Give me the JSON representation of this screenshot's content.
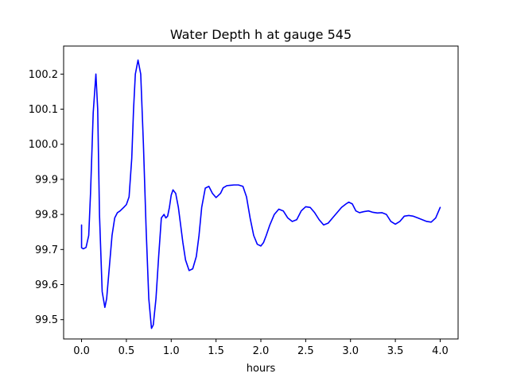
{
  "chart_data": {
    "type": "line",
    "title": "Water Depth h at gauge 545",
    "xlabel": "hours",
    "ylabel": "",
    "xlim": [
      -0.2,
      4.2
    ],
    "ylim": [
      99.445,
      100.28
    ],
    "xticks": [
      0.0,
      0.5,
      1.0,
      1.5,
      2.0,
      2.5,
      3.0,
      3.5,
      4.0
    ],
    "xtick_labels": [
      "0.0",
      "0.5",
      "1.0",
      "1.5",
      "2.0",
      "2.5",
      "3.0",
      "3.5",
      "4.0"
    ],
    "yticks": [
      99.5,
      99.6,
      99.7,
      99.8,
      99.9,
      100.0,
      100.1,
      100.2
    ],
    "ytick_labels": [
      "99.5",
      "99.6",
      "99.7",
      "99.8",
      "99.9",
      "100.0",
      "100.1",
      "100.2"
    ],
    "grid": false,
    "legend": "none",
    "series": [
      {
        "color": "#0000ff",
        "x": [
          0.0,
          0.0,
          0.02,
          0.05,
          0.08,
          0.1,
          0.13,
          0.16,
          0.18,
          0.2,
          0.23,
          0.26,
          0.28,
          0.31,
          0.34,
          0.37,
          0.4,
          0.43,
          0.47,
          0.5,
          0.53,
          0.56,
          0.58,
          0.6,
          0.63,
          0.66,
          0.69,
          0.72,
          0.75,
          0.78,
          0.8,
          0.83,
          0.86,
          0.89,
          0.92,
          0.94,
          0.96,
          0.98,
          1.0,
          1.02,
          1.05,
          1.08,
          1.1,
          1.13,
          1.16,
          1.2,
          1.24,
          1.28,
          1.31,
          1.34,
          1.38,
          1.42,
          1.46,
          1.5,
          1.55,
          1.58,
          1.62,
          1.66,
          1.7,
          1.75,
          1.8,
          1.84,
          1.88,
          1.92,
          1.96,
          2.0,
          2.03,
          2.06,
          2.1,
          2.15,
          2.2,
          2.25,
          2.3,
          2.35,
          2.4,
          2.45,
          2.5,
          2.55,
          2.6,
          2.65,
          2.7,
          2.75,
          2.8,
          2.85,
          2.9,
          2.95,
          2.98,
          3.02,
          3.06,
          3.1,
          3.15,
          3.2,
          3.25,
          3.3,
          3.35,
          3.4,
          3.45,
          3.5,
          3.55,
          3.6,
          3.65,
          3.7,
          3.75,
          3.8,
          3.85,
          3.9,
          3.95,
          4.0
        ],
        "values": [
          99.77,
          99.705,
          99.702,
          99.706,
          99.74,
          99.86,
          100.09,
          100.2,
          100.1,
          99.8,
          99.58,
          99.535,
          99.56,
          99.65,
          99.74,
          99.79,
          99.805,
          99.81,
          99.82,
          99.828,
          99.85,
          99.96,
          100.1,
          100.2,
          100.24,
          100.2,
          100.0,
          99.76,
          99.56,
          99.475,
          99.485,
          99.56,
          99.68,
          99.79,
          99.8,
          99.79,
          99.795,
          99.82,
          99.855,
          99.87,
          99.86,
          99.82,
          99.78,
          99.72,
          99.67,
          99.64,
          99.645,
          99.68,
          99.74,
          99.82,
          99.875,
          99.88,
          99.86,
          99.848,
          99.86,
          99.876,
          99.882,
          99.883,
          99.884,
          99.884,
          99.88,
          99.85,
          99.79,
          99.74,
          99.715,
          99.71,
          99.72,
          99.74,
          99.77,
          99.8,
          99.815,
          99.81,
          99.79,
          99.78,
          99.785,
          99.81,
          99.822,
          99.82,
          99.805,
          99.785,
          99.77,
          99.775,
          99.79,
          99.805,
          99.82,
          99.83,
          99.835,
          99.83,
          99.81,
          99.805,
          99.808,
          99.81,
          99.806,
          99.804,
          99.805,
          99.8,
          99.78,
          99.772,
          99.78,
          99.795,
          99.797,
          99.795,
          99.79,
          99.785,
          99.78,
          99.778,
          99.79,
          99.82
        ]
      }
    ]
  }
}
